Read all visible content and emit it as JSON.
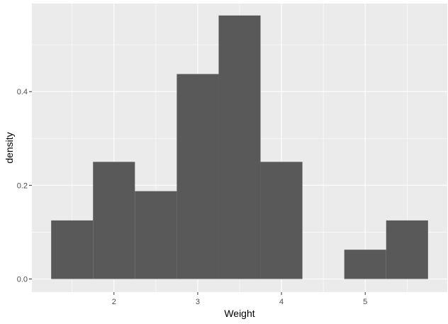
{
  "chart_data": {
    "type": "bar",
    "xlabel": "Weight",
    "ylabel": "density",
    "xlim": [
      1.02,
      5.98
    ],
    "ylim": [
      -0.028,
      0.588
    ],
    "x_ticks": [
      2,
      3,
      4,
      5
    ],
    "x_tick_labels": [
      "2",
      "3",
      "4",
      "5"
    ],
    "y_ticks": [
      0.0,
      0.2,
      0.4
    ],
    "y_tick_labels": [
      "0.0",
      "0.2",
      "0.4"
    ],
    "bins": [
      {
        "x0": 1.25,
        "x1": 1.75,
        "density": 0.125
      },
      {
        "x0": 1.75,
        "x1": 2.25,
        "density": 0.25
      },
      {
        "x0": 2.25,
        "x1": 2.75,
        "density": 0.1875
      },
      {
        "x0": 2.75,
        "x1": 3.25,
        "density": 0.4375
      },
      {
        "x0": 3.25,
        "x1": 3.75,
        "density": 0.5625
      },
      {
        "x0": 3.75,
        "x1": 4.25,
        "density": 0.25
      },
      {
        "x0": 4.25,
        "x1": 4.75,
        "density": 0
      },
      {
        "x0": 4.75,
        "x1": 5.25,
        "density": 0.0625
      },
      {
        "x0": 5.25,
        "x1": 5.75,
        "density": 0.125
      }
    ],
    "grid": true,
    "colors": {
      "panel_background": "#ebebeb",
      "grid_major": "#ffffff",
      "bar_fill": "#595959",
      "tick_color": "#333333"
    }
  }
}
